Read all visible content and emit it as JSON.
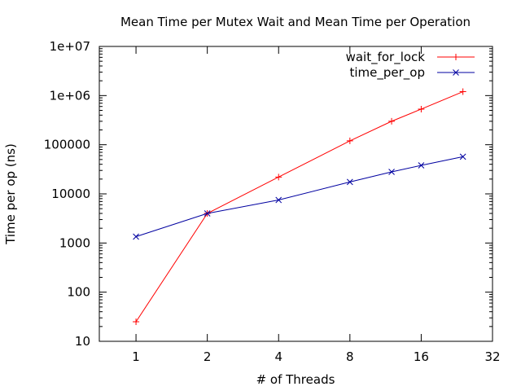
{
  "chart_data": {
    "type": "line",
    "title": "Mean Time per Mutex Wait and Mean Time per Operation",
    "xlabel": "# of Threads",
    "ylabel": "Time per op (ns)",
    "x_scale": "log2",
    "y_scale": "log10",
    "xlim": [
      0.7,
      32
    ],
    "ylim": [
      10,
      10000000
    ],
    "x_ticks": [
      1,
      2,
      4,
      8,
      16,
      32
    ],
    "x_tick_labels": [
      "1",
      "2",
      "4",
      "8",
      "16",
      "32"
    ],
    "y_ticks": [
      10,
      100,
      1000,
      10000,
      100000,
      1000000,
      10000000
    ],
    "y_tick_labels": [
      "10",
      "100",
      "1000",
      "10000",
      "100000",
      "1e+06",
      "1e+07"
    ],
    "grid": false,
    "legend_position": "top-right",
    "x": [
      1,
      2,
      4,
      8,
      12,
      16,
      24
    ],
    "series": [
      {
        "name": "wait_for_lock",
        "color": "#ff0000",
        "marker": "plus",
        "values": [
          25,
          4000,
          22000,
          120000,
          300000,
          530000,
          1200000
        ]
      },
      {
        "name": "time_per_op",
        "color": "#0000a0",
        "marker": "cross",
        "values": [
          1350,
          4000,
          7500,
          17500,
          28000,
          38000,
          57000
        ]
      }
    ]
  }
}
